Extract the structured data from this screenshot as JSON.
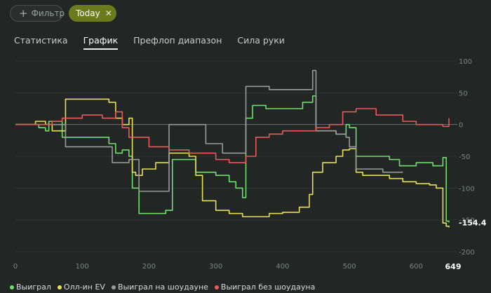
{
  "filters": {
    "add_label": "Фильтр",
    "active_chip": "Today"
  },
  "tabs": [
    {
      "label": "Статистика",
      "active": false
    },
    {
      "label": "График",
      "active": true
    },
    {
      "label": "Префлоп диапазон",
      "active": false
    },
    {
      "label": "Сила руки",
      "active": false
    }
  ],
  "chart_data": {
    "type": "line",
    "xlim": [
      0,
      649
    ],
    "ylim": [
      -200,
      100
    ],
    "x_ticks": [
      0,
      100,
      200,
      300,
      400,
      500,
      600
    ],
    "x_last_label": "649",
    "y_ticks": [
      100,
      50,
      0,
      -50,
      -100,
      -150,
      -200
    ],
    "zero_line": true,
    "final_value_label": "-154.4",
    "legend_position": "bottom-left",
    "series": [
      {
        "name": "Выиграл",
        "color": "#6fe06a",
        "points": [
          [
            0,
            0
          ],
          [
            15,
            0
          ],
          [
            35,
            -5
          ],
          [
            45,
            -10
          ],
          [
            50,
            5
          ],
          [
            65,
            5
          ],
          [
            70,
            -20
          ],
          [
            140,
            -30
          ],
          [
            150,
            -45
          ],
          [
            160,
            -40
          ],
          [
            170,
            -50
          ],
          [
            175,
            -100
          ],
          [
            180,
            -100
          ],
          [
            185,
            -140
          ],
          [
            225,
            -135
          ],
          [
            235,
            -55
          ],
          [
            260,
            -55
          ],
          [
            270,
            -75
          ],
          [
            300,
            -80
          ],
          [
            320,
            -90
          ],
          [
            330,
            -100
          ],
          [
            340,
            -115
          ],
          [
            345,
            10
          ],
          [
            355,
            30
          ],
          [
            375,
            25
          ],
          [
            400,
            25
          ],
          [
            415,
            25
          ],
          [
            430,
            35
          ],
          [
            445,
            45
          ],
          [
            450,
            -10
          ],
          [
            480,
            -15
          ],
          [
            495,
            0
          ],
          [
            500,
            -5
          ],
          [
            510,
            -50
          ],
          [
            560,
            -55
          ],
          [
            575,
            -65
          ],
          [
            600,
            -60
          ],
          [
            625,
            -65
          ],
          [
            635,
            -65
          ],
          [
            640,
            -52
          ],
          [
            645,
            -152
          ],
          [
            649,
            -154
          ]
        ]
      },
      {
        "name": "Олл-ин EV",
        "color": "#e8e05a",
        "points": [
          [
            0,
            0
          ],
          [
            30,
            5
          ],
          [
            45,
            0
          ],
          [
            55,
            -10
          ],
          [
            75,
            40
          ],
          [
            140,
            35
          ],
          [
            150,
            10
          ],
          [
            160,
            0
          ],
          [
            170,
            10
          ],
          [
            175,
            -75
          ],
          [
            180,
            -80
          ],
          [
            190,
            -70
          ],
          [
            210,
            -60
          ],
          [
            230,
            -45
          ],
          [
            260,
            -50
          ],
          [
            270,
            -80
          ],
          [
            280,
            -120
          ],
          [
            300,
            -135
          ],
          [
            320,
            -140
          ],
          [
            340,
            -145
          ],
          [
            350,
            -145
          ],
          [
            380,
            -140
          ],
          [
            400,
            -138
          ],
          [
            425,
            -130
          ],
          [
            440,
            -110
          ],
          [
            445,
            -75
          ],
          [
            460,
            -60
          ],
          [
            480,
            -50
          ],
          [
            490,
            -40
          ],
          [
            500,
            -38
          ],
          [
            510,
            -75
          ],
          [
            520,
            -80
          ],
          [
            560,
            -85
          ],
          [
            580,
            -90
          ],
          [
            600,
            -93
          ],
          [
            620,
            -95
          ],
          [
            630,
            -100
          ],
          [
            640,
            -155
          ],
          [
            645,
            -160
          ],
          [
            649,
            -162
          ]
        ]
      },
      {
        "name": "Выиграл на шоудауне",
        "color": "#9a9c9a",
        "points": [
          [
            0,
            0
          ],
          [
            75,
            -35
          ],
          [
            140,
            -35
          ],
          [
            145,
            -60
          ],
          [
            160,
            -60
          ],
          [
            170,
            -55
          ],
          [
            180,
            -55
          ],
          [
            185,
            -105
          ],
          [
            220,
            -105
          ],
          [
            230,
            0
          ],
          [
            280,
            0
          ],
          [
            285,
            -30
          ],
          [
            310,
            -45
          ],
          [
            340,
            -45
          ],
          [
            345,
            60
          ],
          [
            380,
            55
          ],
          [
            440,
            55
          ],
          [
            445,
            85
          ],
          [
            450,
            -10
          ],
          [
            480,
            -15
          ],
          [
            495,
            -20
          ],
          [
            500,
            -35
          ],
          [
            510,
            -70
          ],
          [
            550,
            -75
          ],
          [
            580,
            -75
          ]
        ]
      },
      {
        "name": "Выиграл без шоудауна",
        "color": "#e85a5a",
        "points": [
          [
            0,
            0
          ],
          [
            40,
            0
          ],
          [
            55,
            5
          ],
          [
            70,
            10
          ],
          [
            100,
            15
          ],
          [
            130,
            10
          ],
          [
            150,
            20
          ],
          [
            160,
            -5
          ],
          [
            170,
            -20
          ],
          [
            200,
            -35
          ],
          [
            230,
            -40
          ],
          [
            260,
            -45
          ],
          [
            280,
            -45
          ],
          [
            300,
            -55
          ],
          [
            320,
            -60
          ],
          [
            345,
            -50
          ],
          [
            360,
            -20
          ],
          [
            380,
            -15
          ],
          [
            400,
            -10
          ],
          [
            430,
            -10
          ],
          [
            450,
            -5
          ],
          [
            470,
            0
          ],
          [
            490,
            20
          ],
          [
            510,
            25
          ],
          [
            540,
            15
          ],
          [
            560,
            15
          ],
          [
            580,
            5
          ],
          [
            600,
            0
          ],
          [
            620,
            0
          ],
          [
            640,
            -3
          ],
          [
            649,
            10
          ]
        ]
      }
    ]
  }
}
